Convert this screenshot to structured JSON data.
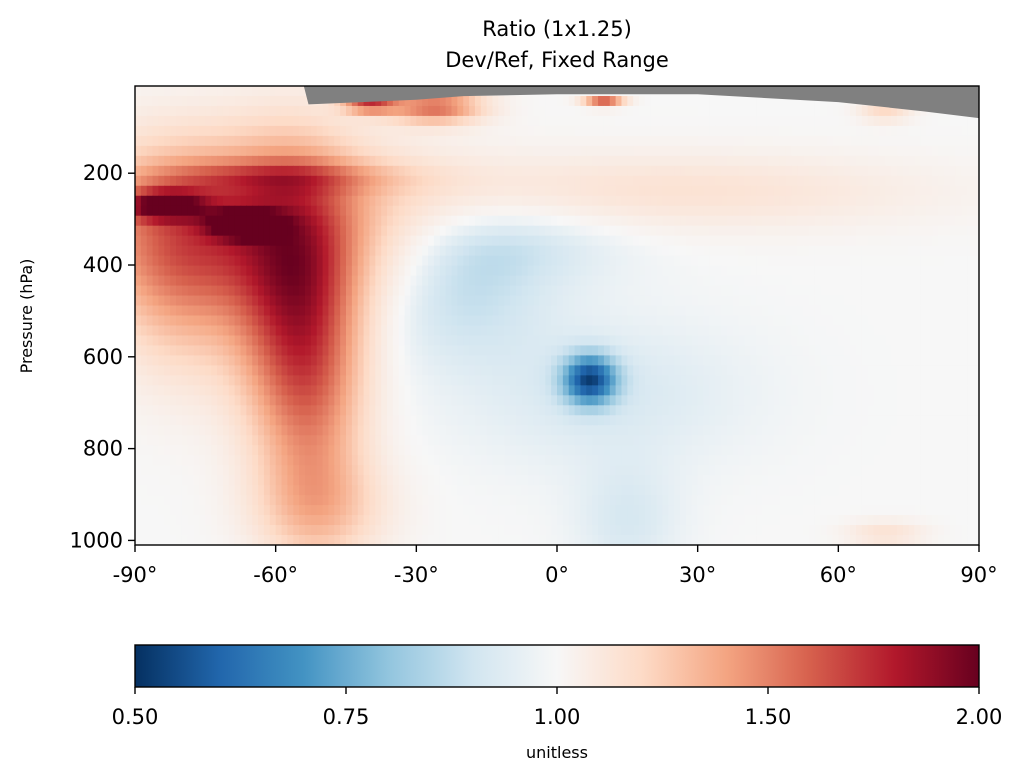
{
  "chart_data": {
    "type": "heatmap",
    "title": "Ratio (1x1.25)",
    "subtitle": "Dev/Ref, Fixed Range",
    "xlabel": "",
    "ylabel": "Pressure (hPa)",
    "x_range": [
      -90,
      90
    ],
    "y_range": [
      1010,
      10
    ],
    "y_inverted": true,
    "x_ticks": [
      {
        "value": -90,
        "label": "-90°"
      },
      {
        "value": -60,
        "label": "-60°"
      },
      {
        "value": -30,
        "label": "-30°"
      },
      {
        "value": 0,
        "label": "0°"
      },
      {
        "value": 30,
        "label": "30°"
      },
      {
        "value": 60,
        "label": "60°"
      },
      {
        "value": 90,
        "label": "90°"
      }
    ],
    "y_ticks": [
      {
        "value": 200,
        "label": "200"
      },
      {
        "value": 400,
        "label": "400"
      },
      {
        "value": 600,
        "label": "600"
      },
      {
        "value": 800,
        "label": "800"
      },
      {
        "value": 1000,
        "label": "1000"
      }
    ],
    "grid": false,
    "colormap": "RdBu_r",
    "color_range": [
      0.5,
      2.0
    ],
    "missing_color": "#808080",
    "background_value": 1.0,
    "features": [
      {
        "value": 1.48,
        "lat": -68,
        "p": 310,
        "slat": 26,
        "sp": 130,
        "theta": 0
      },
      {
        "value": 1.5,
        "lat": -57,
        "p": 470,
        "slat": 9,
        "sp": 200,
        "theta": 0
      },
      {
        "value": 1.38,
        "lat": -52,
        "p": 660,
        "slat": 8,
        "sp": 230,
        "theta": 0
      },
      {
        "value": 1.3,
        "lat": -80,
        "p": 420,
        "slat": 10,
        "sp": 160,
        "theta": 0
      },
      {
        "value": 1.2,
        "lat": -50,
        "p": 930,
        "slat": 10,
        "sp": 80,
        "theta": 0
      },
      {
        "value": 1.7,
        "lat": -67,
        "p": 310,
        "slat": 5,
        "sp": 22,
        "theta": 0
      },
      {
        "value": 1.7,
        "lat": -84,
        "p": 270,
        "slat": 6,
        "sp": 22,
        "theta": 0
      },
      {
        "value": 1.25,
        "lat": -60,
        "p": 210,
        "slat": 18,
        "sp": 25,
        "theta": 0
      },
      {
        "value": 0.86,
        "lat": -22,
        "p": 450,
        "slat": 14,
        "sp": 110,
        "theta": 0
      },
      {
        "value": 0.9,
        "lat": -10,
        "p": 340,
        "slat": 18,
        "sp": 70,
        "theta": 0
      },
      {
        "value": 0.92,
        "lat": 10,
        "p": 680,
        "slat": 22,
        "sp": 120,
        "theta": 0
      },
      {
        "value": 0.6,
        "lat": 7,
        "p": 650,
        "slat": 4,
        "sp": 38,
        "theta": 0
      },
      {
        "value": 0.92,
        "lat": 15,
        "p": 960,
        "slat": 8,
        "sp": 90,
        "theta": 0
      },
      {
        "value": 1.15,
        "lat": 22,
        "p": 240,
        "slat": 40,
        "sp": 60,
        "theta": 0
      },
      {
        "value": 1.65,
        "lat": -40,
        "p": 45,
        "slat": 4,
        "sp": 16,
        "theta": 0
      },
      {
        "value": 1.55,
        "lat": -26,
        "p": 55,
        "slat": 7,
        "sp": 25,
        "theta": 0
      },
      {
        "value": 1.6,
        "lat": 10,
        "p": 45,
        "slat": 3,
        "sp": 8,
        "theta": 0
      },
      {
        "value": 1.2,
        "lat": 70,
        "p": 60,
        "slat": 4,
        "sp": 20,
        "theta": 0
      },
      {
        "value": 1.15,
        "lat": 70,
        "p": 985,
        "slat": 6,
        "sp": 20,
        "theta": 0
      }
    ],
    "missing_top": [
      {
        "lat": -90,
        "p_bottom": 10
      },
      {
        "lat": -54,
        "p_bottom": 10
      },
      {
        "lat": -53,
        "p_bottom": 50
      },
      {
        "lat": -30,
        "p_bottom": 40
      },
      {
        "lat": -20,
        "p_bottom": 32
      },
      {
        "lat": 0,
        "p_bottom": 28
      },
      {
        "lat": 30,
        "p_bottom": 28
      },
      {
        "lat": 60,
        "p_bottom": 45
      },
      {
        "lat": 78,
        "p_bottom": 65
      },
      {
        "lat": 90,
        "p_bottom": 80
      }
    ],
    "colorbar": {
      "ticks": [
        {
          "value": 0.5,
          "label": "0.50"
        },
        {
          "value": 0.75,
          "label": "0.75"
        },
        {
          "value": 1.0,
          "label": "1.00"
        },
        {
          "value": 1.5,
          "label": "1.50"
        },
        {
          "value": 2.0,
          "label": "2.00"
        }
      ],
      "label": "unitless"
    }
  }
}
